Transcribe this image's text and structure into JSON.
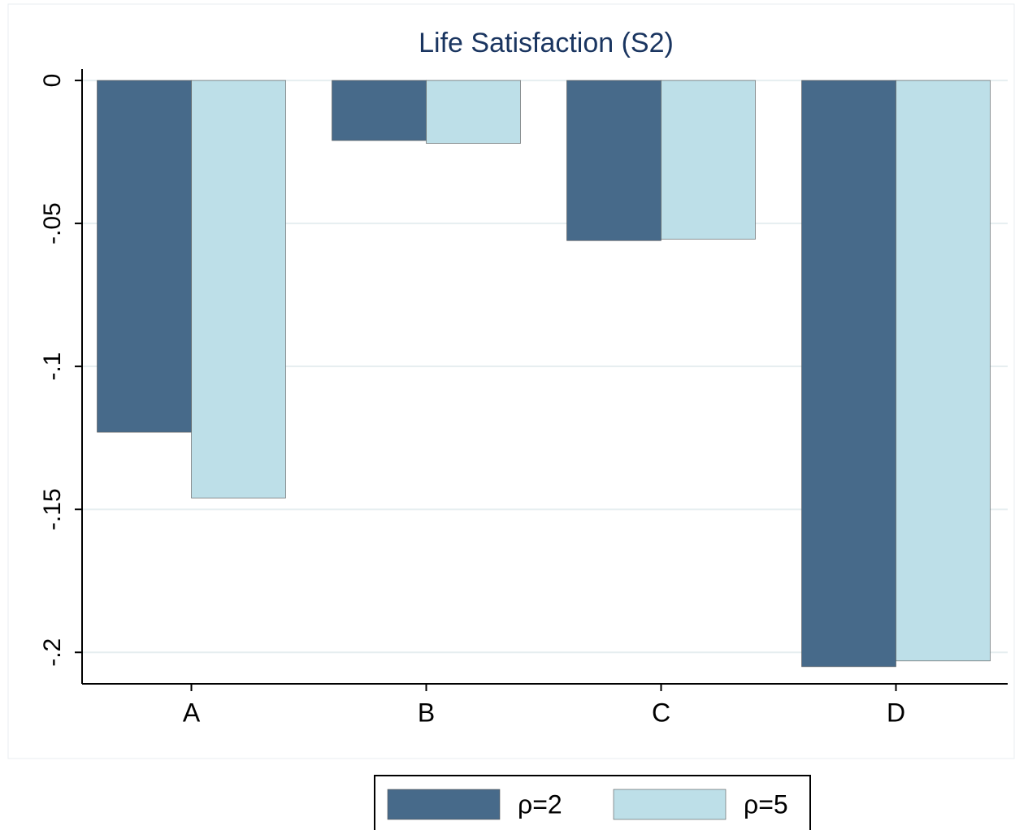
{
  "chart_data": {
    "type": "bar",
    "title": "Life Satisfaction (S2)",
    "categories": [
      "A",
      "B",
      "C",
      "D"
    ],
    "series": [
      {
        "name": "ρ=2",
        "color": "#476a8a",
        "values": [
          -0.123,
          -0.021,
          -0.056,
          -0.205
        ]
      },
      {
        "name": "ρ=5",
        "color": "#bddfe8",
        "values": [
          -0.146,
          -0.022,
          -0.0555,
          -0.203
        ]
      }
    ],
    "ylim": [
      -0.211,
      0.004
    ],
    "yticks": [
      0,
      {
        "value": -0.05,
        "label": "-.05"
      },
      {
        "value": -0.1,
        "label": "-.1"
      },
      {
        "value": -0.15,
        "label": "-.15"
      },
      {
        "value": -0.2,
        "label": "-.2"
      }
    ],
    "grid": true,
    "legend": "bottom"
  }
}
